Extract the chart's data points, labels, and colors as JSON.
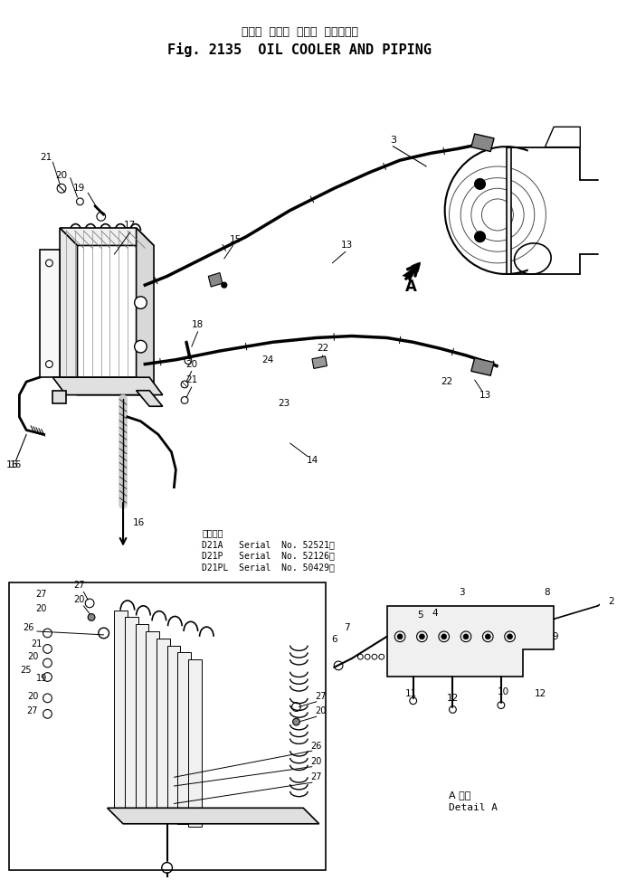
{
  "title_japanese": "オイル  クーラ  および  パイピング",
  "title_english": "Fig. 2135  OIL COOLER AND PIPING",
  "serial_text": "適用号機\nD21A   Serial No. 52521～\nD21P   Serial No. 52126～\nD21PL  Serial No. 50429～",
  "detail_label": "A 詳細\nDetail A",
  "bg_color": "#ffffff",
  "lc": "#000000"
}
